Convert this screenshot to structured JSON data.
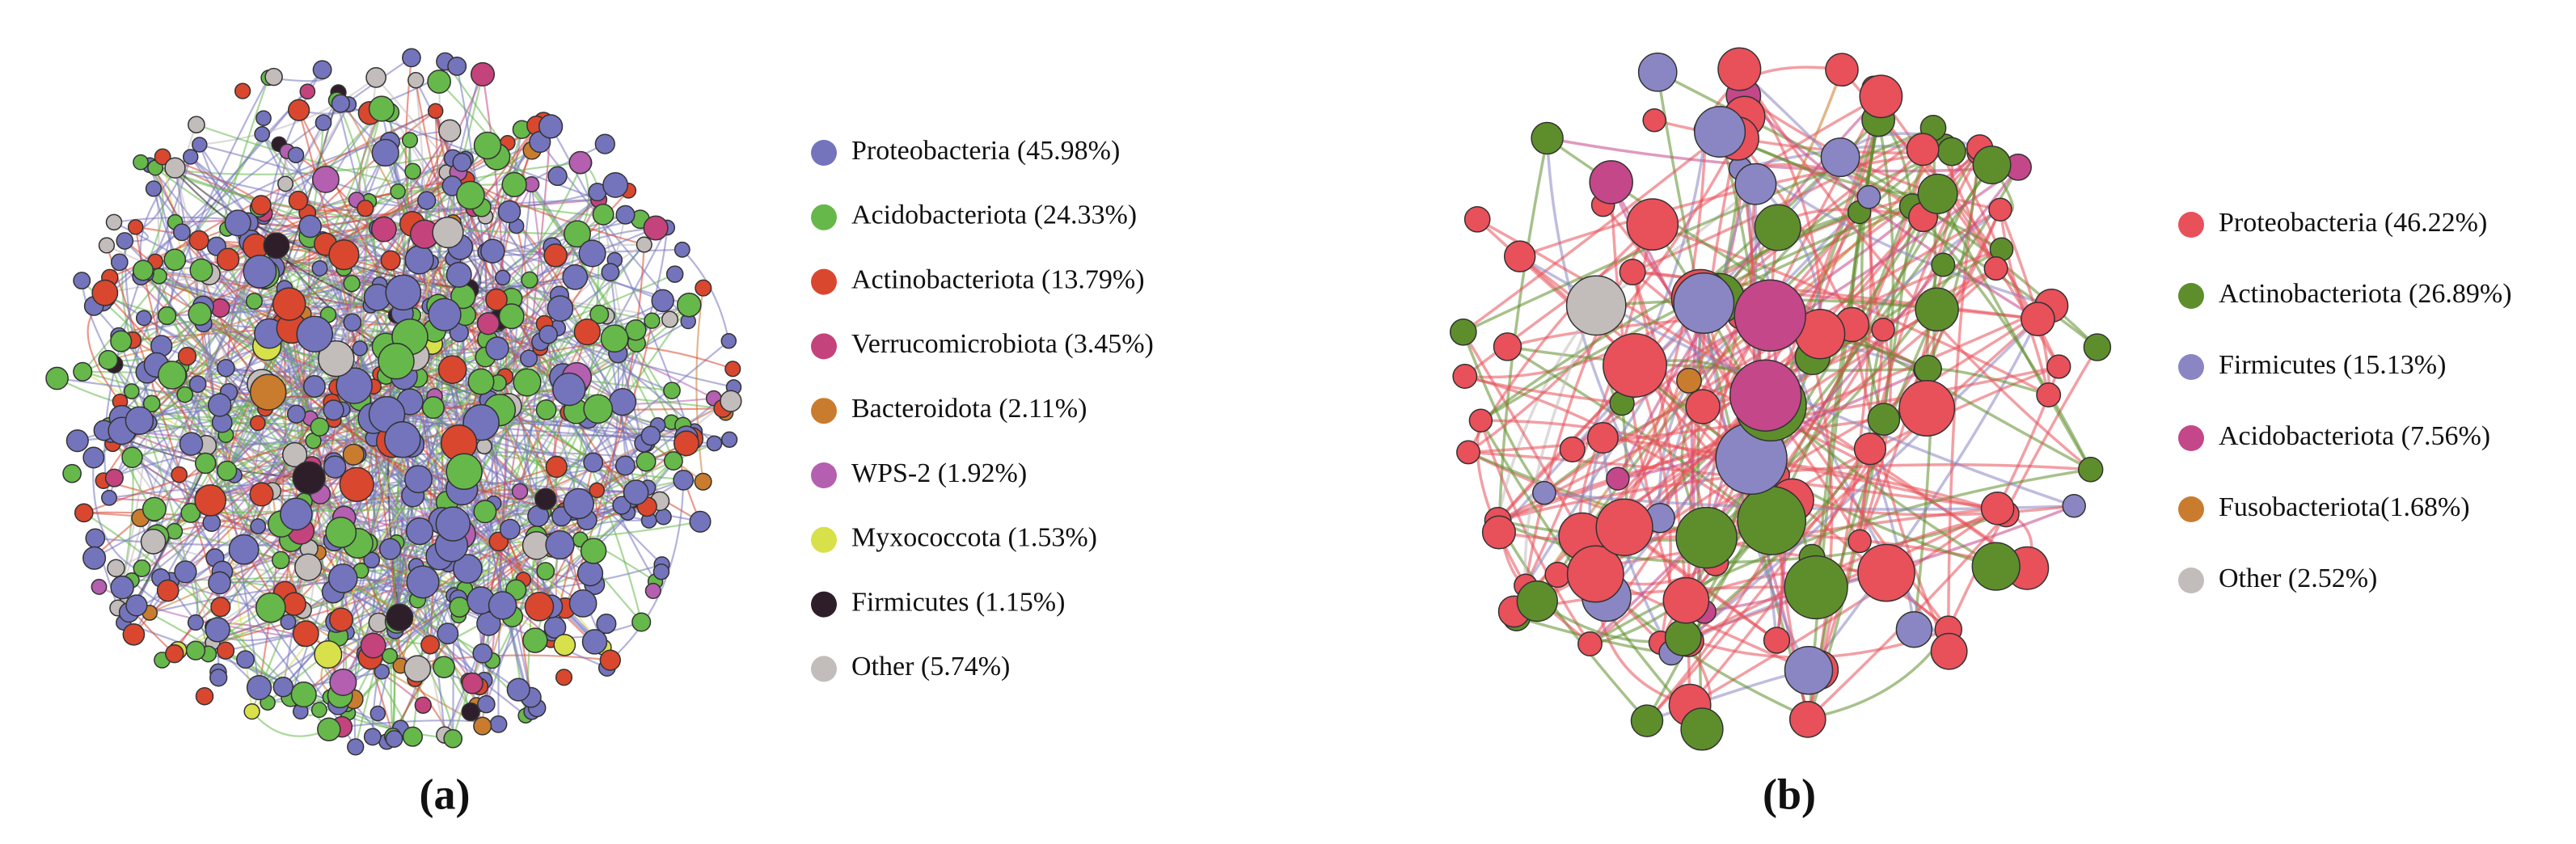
{
  "panels": [
    {
      "label": "(a)",
      "legend": [
        {
          "label": "Proteobacteria (45.98%)",
          "color": "#7474bd"
        },
        {
          "label": "Acidobacteriota (24.33%)",
          "color": "#66b84a"
        },
        {
          "label": "Actinobacteriota (13.79%)",
          "color": "#d9472f"
        },
        {
          "label": "Verrucomicrobiota (3.45%)",
          "color": "#c4437d"
        },
        {
          "label": "Bacteroidota (2.11%)",
          "color": "#c97c2e"
        },
        {
          "label": "WPS-2 (1.92%)",
          "color": "#b45fb0"
        },
        {
          "label": "Myxococcota (1.53%)",
          "color": "#d8e04a"
        },
        {
          "label": "Firmicutes (1.15%)",
          "color": "#2e1e2a"
        },
        {
          "label": "Other (5.74%)",
          "color": "#c2bcbb"
        }
      ]
    },
    {
      "label": "(b)",
      "legend": [
        {
          "label": "Proteobacteria (46.22%)",
          "color": "#e8505a"
        },
        {
          "label": "Actinobacteriota (26.89%)",
          "color": "#5e8e2c"
        },
        {
          "label": "Firmicutes (15.13%)",
          "color": "#8a86c3"
        },
        {
          "label": "Acidobacteriota (7.56%)",
          "color": "#c4478a"
        },
        {
          "label": "Fusobacteriota(1.68%)",
          "color": "#c97c2e"
        },
        {
          "label": "Other (2.52%)",
          "color": "#c2bcbb"
        }
      ]
    }
  ]
}
